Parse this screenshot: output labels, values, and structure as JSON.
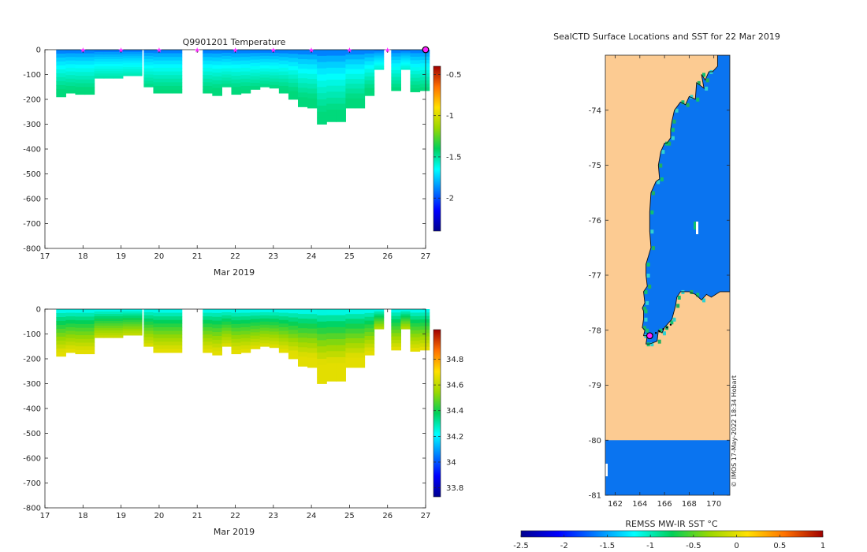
{
  "chart_data": [
    {
      "type": "heatmap",
      "name": "temperature-panel",
      "title": "Q9901201  Temperature",
      "xlabel": "Mar 2019",
      "xlim": [
        17,
        27
      ],
      "ylim": [
        -800,
        0
      ],
      "xticks": [
        "17",
        "18",
        "19",
        "20",
        "21",
        "22",
        "23",
        "24",
        "25",
        "26",
        "27"
      ],
      "yticks": [
        "0",
        "-100",
        "-200",
        "-300",
        "-400",
        "-500",
        "-600",
        "-700",
        "-800"
      ],
      "surface_markers_day": [
        18,
        19,
        20,
        21,
        22,
        23,
        24,
        25,
        26
      ],
      "current_marker_day": 27,
      "colorbar": {
        "min": -2.4,
        "max": -0.4,
        "ticks": [
          "-0.5",
          "-1",
          "-1.5",
          "-2"
        ],
        "tick_values": [
          -0.5,
          -1,
          -1.5,
          -2
        ]
      },
      "profiles_day": [
        17.3,
        17.55,
        17.8,
        18.05,
        18.3,
        18.55,
        18.8,
        19.05,
        19.3,
        19.6,
        19.85,
        20.1,
        20.35,
        21.15,
        21.4,
        21.65,
        21.9,
        22.15,
        22.4,
        22.65,
        22.9,
        23.15,
        23.4,
        23.65,
        23.9,
        24.15,
        24.4,
        24.65,
        24.9,
        25.15,
        25.4,
        25.65,
        26.1,
        26.35,
        26.6,
        26.85
      ],
      "profiles_depth_m": [
        190,
        175,
        180,
        180,
        115,
        115,
        115,
        105,
        105,
        150,
        175,
        175,
        175,
        175,
        185,
        150,
        180,
        175,
        160,
        150,
        155,
        175,
        200,
        230,
        235,
        300,
        290,
        290,
        235,
        235,
        185,
        80,
        165,
        80,
        170,
        165
      ],
      "temperature_ramp": {
        "surface": -2.0,
        "bottom": -1.45
      }
    },
    {
      "type": "heatmap",
      "name": "salinity-panel",
      "title": "",
      "xlabel": "Mar 2019",
      "xlim": [
        17,
        27
      ],
      "ylim": [
        -800,
        0
      ],
      "xticks": [
        "17",
        "18",
        "19",
        "20",
        "21",
        "22",
        "23",
        "24",
        "25",
        "26",
        "27"
      ],
      "yticks": [
        "0",
        "-100",
        "-200",
        "-300",
        "-400",
        "-500",
        "-600",
        "-700",
        "-800"
      ],
      "colorbar": {
        "min": 33.73,
        "max": 35.03,
        "ticks": [
          "34.8",
          "34.6",
          "34.4",
          "34.2",
          "34",
          "33.8"
        ],
        "tick_values": [
          34.8,
          34.6,
          34.4,
          34.2,
          34.0,
          33.8
        ]
      },
      "salinity_ramp": {
        "surface": 34.2,
        "bottom": 34.66
      }
    },
    {
      "type": "map",
      "name": "sst-map",
      "title": "SealCTD Surface Locations and SST for 22 Mar 2019",
      "lon_range": [
        161.2,
        171.3
      ],
      "lat_range": [
        -81,
        -73
      ],
      "xticks": [
        "162",
        "164",
        "166",
        "168",
        "170"
      ],
      "yticks": [
        "-74",
        "-75",
        "-76",
        "-77",
        "-78",
        "-79",
        "-80",
        "-81"
      ],
      "coast_lon": [
        171.3,
        170.3,
        170.3,
        169.9,
        169.6,
        169.3,
        169.0,
        169.2,
        168.6,
        168.5,
        168.0,
        167.7,
        167.3,
        166.8,
        166.6,
        166.5,
        166.5,
        166.2,
        166.0,
        165.7,
        165.5,
        165.6,
        165.3,
        164.9,
        164.8,
        164.8,
        164.9,
        164.5,
        164.5,
        164.6,
        164.3,
        164.4,
        164.2,
        164.3,
        164.3,
        164.2,
        164.4,
        164.3,
        164.6,
        164.5,
        164.8,
        165.4,
        165.5,
        165.8,
        166.0,
        166.4,
        166.6,
        166.9,
        167.0,
        167.3,
        168.0,
        168.5,
        169.0,
        169.4,
        169.8,
        170.5,
        171.3
      ],
      "coast_lat": [
        -73.0,
        -73.0,
        -73.2,
        -73.3,
        -73.3,
        -73.45,
        -73.35,
        -73.6,
        -73.5,
        -73.8,
        -73.75,
        -73.9,
        -73.85,
        -74.0,
        -74.2,
        -74.35,
        -74.5,
        -74.6,
        -74.6,
        -74.75,
        -75.0,
        -75.25,
        -75.3,
        -75.5,
        -75.85,
        -76.2,
        -76.5,
        -76.8,
        -77.0,
        -77.2,
        -77.3,
        -77.5,
        -77.6,
        -77.65,
        -77.8,
        -77.95,
        -78.0,
        -78.1,
        -78.1,
        -78.25,
        -78.25,
        -78.2,
        -78.0,
        -78.05,
        -77.95,
        -77.85,
        -77.8,
        -77.55,
        -77.4,
        -77.3,
        -77.3,
        -77.35,
        -77.45,
        -77.35,
        -77.4,
        -77.3,
        -77.3
      ],
      "track_lon": [
        165.0,
        165.3,
        165.6,
        165.9,
        166.2,
        166.5
      ],
      "track_lat": [
        -78.08,
        -78.05,
        -78.02,
        -77.98,
        -77.95,
        -77.9
      ],
      "current_location": {
        "lon": 164.8,
        "lat": -78.1
      },
      "ice_shelf_lat_max": -80,
      "credit": "© IMOS 17-May-2022 18:34 Hobart",
      "colorbar": {
        "label": "REMSS MW-IR SST °C",
        "min": -2.5,
        "max": 1,
        "ticks": [
          "-2.5",
          "-2",
          "-1.5",
          "-1",
          "-0.5",
          "0",
          "0.5",
          "1"
        ],
        "tick_values": [
          -2.5,
          -2,
          -1.5,
          -1,
          -0.5,
          0,
          0.5,
          1
        ]
      }
    }
  ],
  "colors": {
    "land": "#fccb92",
    "ocean": "#0a74f0",
    "marker": "#ff22ff",
    "axis": "#262626"
  }
}
